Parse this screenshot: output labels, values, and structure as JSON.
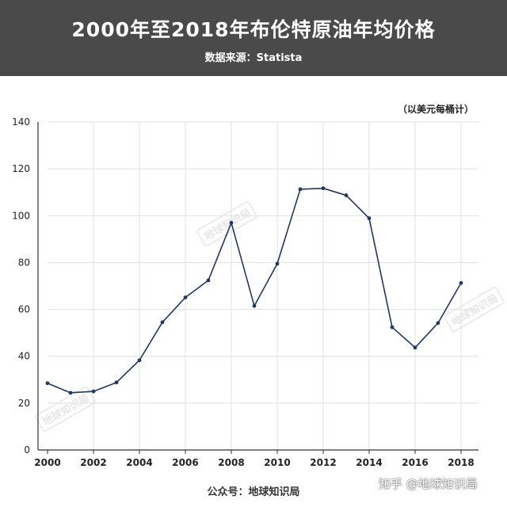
{
  "header": {
    "title": "2000年至2018年布伦特原油年均价格",
    "subtitle": "数据来源：Statista"
  },
  "unit_label": "（以美元每桶计）",
  "footer": {
    "source": "公众号：地球知识局",
    "brand": "知乎 @地球知识局"
  },
  "watermark": "地球知识局",
  "colors": {
    "header_bg": "#4a4a4a",
    "line": "#1f3864",
    "grid": "#e0e0e0"
  },
  "chart_data": {
    "type": "line",
    "x": [
      2000,
      2001,
      2002,
      2003,
      2004,
      2005,
      2006,
      2007,
      2008,
      2009,
      2010,
      2011,
      2012,
      2013,
      2014,
      2015,
      2016,
      2017,
      2018
    ],
    "series": [
      {
        "values": [
          28.5,
          24.4,
          25.0,
          28.8,
          38.3,
          54.5,
          65.1,
          72.4,
          97.0,
          61.5,
          79.5,
          111.3,
          111.7,
          108.7,
          98.9,
          52.4,
          43.7,
          54.2,
          71.3
        ]
      }
    ],
    "x_ticks": [
      "2000",
      "2002",
      "2004",
      "2006",
      "2008",
      "2010",
      "2012",
      "2014",
      "2016",
      "2018"
    ],
    "y_ticks": [
      "0",
      "20",
      "40",
      "60",
      "80",
      "100",
      "120",
      "140"
    ],
    "ylim": [
      0,
      140
    ],
    "xlim": [
      2000,
      2018
    ],
    "grid": true
  }
}
